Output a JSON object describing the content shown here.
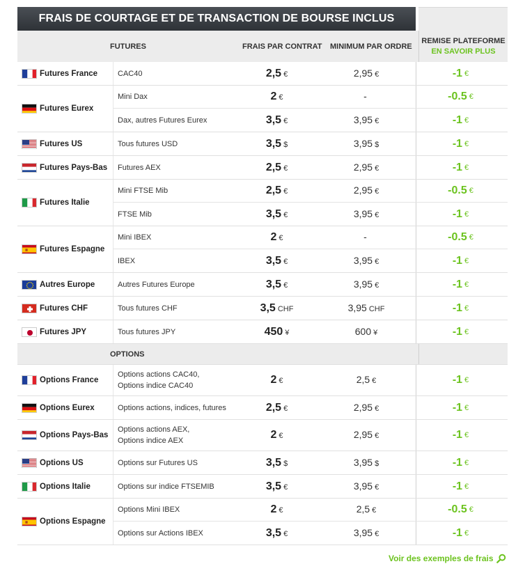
{
  "title": "FRAIS DE COURTAGE ET DE TRANSACTION DE BOURSE INCLUS",
  "headers": {
    "futures": "FUTURES",
    "frais": "FRAIS PAR CONTRAT",
    "minimum": "MINIMUM PAR ORDRE",
    "remise": "REMISE PLATEFORME",
    "remise_link": "EN SAVOIR PLUS"
  },
  "options_header": "OPTIONS",
  "futures_groups": [
    {
      "name": "Futures France",
      "flag": "fr",
      "shaded": false,
      "rows": [
        {
          "product": "CAC40",
          "frais": "2,5",
          "frais_unit": "€",
          "min": "2,95",
          "min_unit": "€",
          "remise": "-1",
          "remise_unit": "€"
        }
      ]
    },
    {
      "name": "Futures Eurex",
      "flag": "de",
      "shaded": false,
      "rows": [
        {
          "product": "Mini Dax",
          "frais": "2",
          "frais_unit": "€",
          "min": "-",
          "min_unit": "",
          "remise": "-0.5",
          "remise_unit": "€"
        },
        {
          "product": "Dax, autres Futures Eurex",
          "frais": "3,5",
          "frais_unit": "€",
          "min": "3,95",
          "min_unit": "€",
          "remise": "-1",
          "remise_unit": "€"
        }
      ]
    },
    {
      "name": "Futures US",
      "flag": "us",
      "shaded": false,
      "rows": [
        {
          "product": "Tous futures USD",
          "frais": "3,5",
          "frais_unit": "$",
          "min": "3,95",
          "min_unit": "$",
          "remise": "-1",
          "remise_unit": "€"
        }
      ]
    },
    {
      "name": "Futures Pays-Bas",
      "flag": "nl",
      "shaded": false,
      "rows": [
        {
          "product": "Futures AEX",
          "frais": "2,5",
          "frais_unit": "€",
          "min": "2,95",
          "min_unit": "€",
          "remise": "-1",
          "remise_unit": "€"
        }
      ]
    },
    {
      "name": "Futures Italie",
      "flag": "it",
      "shaded": false,
      "rows": [
        {
          "product": "Mini FTSE Mib",
          "frais": "2,5",
          "frais_unit": "€",
          "min": "2,95",
          "min_unit": "€",
          "remise": "-0.5",
          "remise_unit": "€"
        },
        {
          "product": "FTSE Mib",
          "frais": "3,5",
          "frais_unit": "€",
          "min": "3,95",
          "min_unit": "€",
          "remise": "-1",
          "remise_unit": "€"
        }
      ]
    },
    {
      "name": "Futures Espagne",
      "flag": "es",
      "shaded": false,
      "rows": [
        {
          "product": "Mini IBEX",
          "frais": "2",
          "frais_unit": "€",
          "min": "-",
          "min_unit": "",
          "remise": "-0.5",
          "remise_unit": "€"
        },
        {
          "product": "IBEX",
          "frais": "3,5",
          "frais_unit": "€",
          "min": "3,95",
          "min_unit": "€",
          "remise": "-1",
          "remise_unit": "€"
        }
      ]
    },
    {
      "name": "Autres Europe",
      "flag": "eu",
      "shaded": false,
      "rows": [
        {
          "product": "Autres Futures Europe",
          "frais": "3,5",
          "frais_unit": "€",
          "min": "3,95",
          "min_unit": "€",
          "remise": "-1",
          "remise_unit": "€"
        }
      ]
    },
    {
      "name": "Futures CHF",
      "flag": "ch",
      "shaded": false,
      "rows": [
        {
          "product": "Tous futures CHF",
          "frais": "3,5",
          "frais_unit": "CHF",
          "min": "3,95",
          "min_unit": "CHF",
          "remise": "-1",
          "remise_unit": "€"
        }
      ]
    },
    {
      "name": "Futures JPY",
      "flag": "jp",
      "shaded": false,
      "rows": [
        {
          "product": "Tous futures JPY",
          "frais": "450",
          "frais_unit": "¥",
          "min": "600",
          "min_unit": "¥",
          "remise": "-1",
          "remise_unit": "€"
        }
      ]
    }
  ],
  "options_groups": [
    {
      "name": "Options France",
      "flag": "fr",
      "shaded": false,
      "rows": [
        {
          "product": "Options actions CAC40, Options indice CAC40",
          "frais": "2",
          "frais_unit": "€",
          "min": "2,5",
          "min_unit": "€",
          "remise": "-1",
          "remise_unit": "€"
        }
      ]
    },
    {
      "name": "Options Eurex",
      "flag": "de",
      "shaded": false,
      "rows": [
        {
          "product": "Options actions, indices, futures",
          "frais": "2,5",
          "frais_unit": "€",
          "min": "2,95",
          "min_unit": "€",
          "remise": "-1",
          "remise_unit": "€"
        }
      ]
    },
    {
      "name": "Options Pays-Bas",
      "flag": "nl",
      "shaded": false,
      "rows": [
        {
          "product": "Options actions AEX, Options indice AEX",
          "frais": "2",
          "frais_unit": "€",
          "min": "2,95",
          "min_unit": "€",
          "remise": "-1",
          "remise_unit": "€"
        }
      ]
    },
    {
      "name": "Options US",
      "flag": "us",
      "shaded": false,
      "rows": [
        {
          "product": "Options sur Futures US",
          "frais": "3,5",
          "frais_unit": "$",
          "min": "3,95",
          "min_unit": "$",
          "remise": "-1",
          "remise_unit": "€"
        }
      ]
    },
    {
      "name": "Options Italie",
      "flag": "it",
      "shaded": false,
      "rows": [
        {
          "product": "Options sur indice FTSEMIB",
          "frais": "3,5",
          "frais_unit": "€",
          "min": "3,95",
          "min_unit": "€",
          "remise": "-1",
          "remise_unit": "€"
        }
      ]
    },
    {
      "name": "Options Espagne",
      "flag": "es",
      "shaded": false,
      "rows": [
        {
          "product": "Options Mini IBEX",
          "frais": "2",
          "frais_unit": "€",
          "min": "2,5",
          "min_unit": "€",
          "remise": "-0.5",
          "remise_unit": "€"
        },
        {
          "product": "Options sur Actions IBEX",
          "frais": "3,5",
          "frais_unit": "€",
          "min": "3,95",
          "min_unit": "€",
          "remise": "-1",
          "remise_unit": "€"
        }
      ]
    }
  ],
  "footer_link": "Voir des exemples de frais",
  "colors": {
    "accent_green": "#6cc31f",
    "title_bg": "#3a3e43",
    "header_bg": "#ececec"
  }
}
